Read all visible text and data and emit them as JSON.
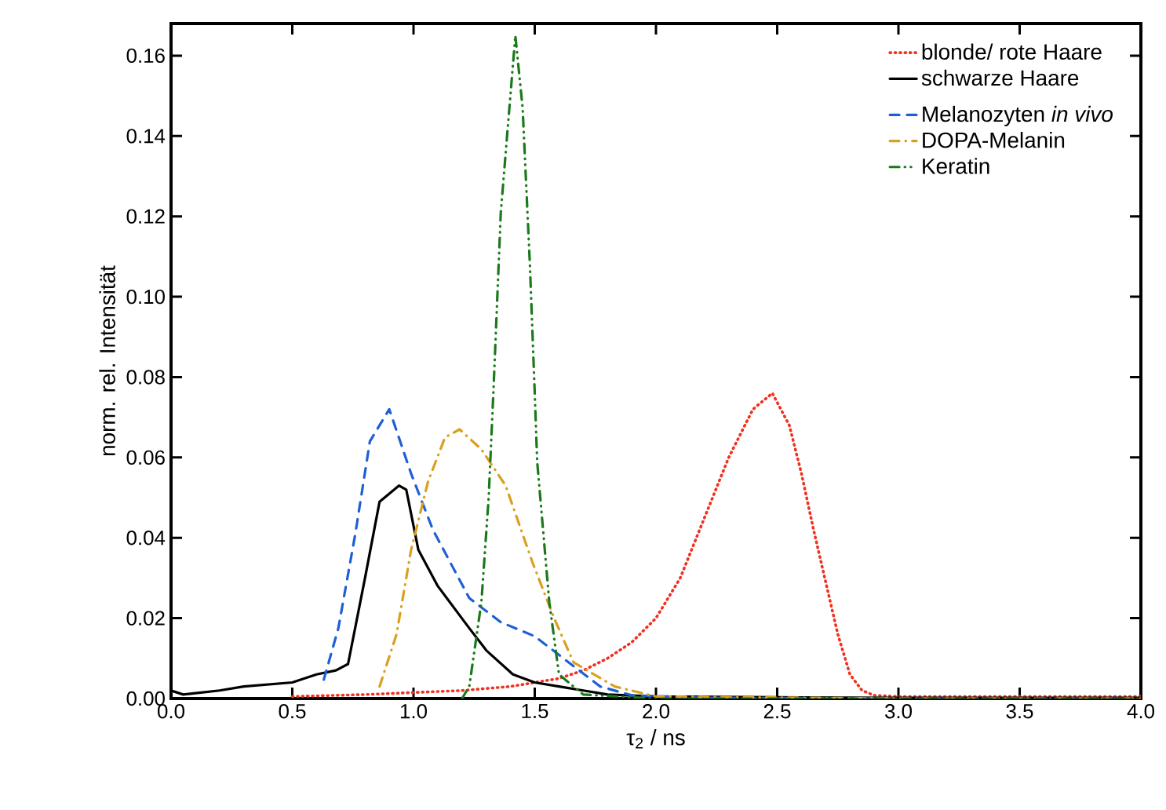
{
  "chart_data": {
    "type": "line",
    "xlabel": "τ$_{2}$ / ns",
    "ylabel": "norm. rel. Intensität",
    "xlim": [
      0,
      4
    ],
    "ylim": [
      0,
      0.168
    ],
    "xticks": [
      {
        "value": 0,
        "label": "0.0"
      },
      {
        "value": 0.5,
        "label": "0.5"
      },
      {
        "value": 1,
        "label": "1.0"
      },
      {
        "value": 1.5,
        "label": "1.5"
      },
      {
        "value": 2,
        "label": "2.0"
      },
      {
        "value": 2.5,
        "label": "2.5"
      },
      {
        "value": 3,
        "label": "3.0"
      },
      {
        "value": 3.5,
        "label": "3.5"
      },
      {
        "value": 4,
        "label": "4.0"
      }
    ],
    "yticks": [
      {
        "value": 0,
        "label": "0.00"
      },
      {
        "value": 0.02,
        "label": "0.02"
      },
      {
        "value": 0.04,
        "label": "0.04"
      },
      {
        "value": 0.06,
        "label": "0.06"
      },
      {
        "value": 0.08,
        "label": "0.08"
      },
      {
        "value": 0.1,
        "label": "0.10"
      },
      {
        "value": 0.12,
        "label": "0.12"
      },
      {
        "value": 0.14,
        "label": "0.14"
      },
      {
        "value": 0.16,
        "label": "0.16"
      }
    ],
    "grid": false,
    "legend": "top right",
    "marker": "none",
    "series": [
      {
        "name": "blonde/ rote Haare",
        "color": "#f03020",
        "line_style": "dotted",
        "x": [
          0.5,
          0.8,
          1.0,
          1.2,
          1.4,
          1.5,
          1.6,
          1.7,
          1.8,
          1.9,
          2.0,
          2.1,
          2.2,
          2.3,
          2.4,
          2.48,
          2.55,
          2.6,
          2.65,
          2.7,
          2.75,
          2.8,
          2.85,
          2.9,
          3.0,
          3.5,
          4.0
        ],
        "values": [
          0.0005,
          0.001,
          0.0015,
          0.002,
          0.003,
          0.004,
          0.005,
          0.007,
          0.01,
          0.014,
          0.02,
          0.03,
          0.045,
          0.06,
          0.072,
          0.076,
          0.068,
          0.056,
          0.042,
          0.029,
          0.016,
          0.006,
          0.002,
          0.0008,
          0.0005,
          0.0005,
          0.0005
        ]
      },
      {
        "name": "schwarze Haare",
        "color": "#000000",
        "line_style": "solid",
        "x": [
          0,
          0.05,
          0.2,
          0.3,
          0.5,
          0.6,
          0.68,
          0.73,
          0.8,
          0.86,
          0.9,
          0.94,
          0.97,
          1.02,
          1.1,
          1.23,
          1.3,
          1.41,
          1.5,
          1.6,
          1.7,
          1.8,
          2.0,
          2.5,
          3.0,
          4.0
        ],
        "values": [
          0.002,
          0.001,
          0.002,
          0.003,
          0.004,
          0.006,
          0.007,
          0.0086,
          0.03,
          0.049,
          0.051,
          0.053,
          0.052,
          0.037,
          0.028,
          0.0175,
          0.012,
          0.006,
          0.004,
          0.003,
          0.002,
          0.001,
          0.0005,
          0.0003,
          0.0002,
          0.0002
        ]
      },
      {
        "name": "Melanozyten *in vivo*",
        "color": "#1f5fd6",
        "line_style": "dashed",
        "x": [
          0.63,
          0.69,
          0.76,
          0.82,
          0.9,
          0.99,
          1.08,
          1.23,
          1.36,
          1.5,
          1.64,
          1.77,
          1.9,
          2.2,
          3.0,
          4.0
        ],
        "values": [
          0.0047,
          0.0175,
          0.041,
          0.064,
          0.072,
          0.056,
          0.042,
          0.025,
          0.019,
          0.0155,
          0.009,
          0.003,
          0.0008,
          0.0002,
          0,
          0
        ]
      },
      {
        "name": "DOPA-Melanin",
        "color": "#d9a020",
        "line_style": "dashdotted",
        "x": [
          0.86,
          0.93,
          0.99,
          1.06,
          1.13,
          1.19,
          1.28,
          1.38,
          1.49,
          1.58,
          1.66,
          1.83,
          2.0,
          3.0,
          4.0
        ],
        "values": [
          0.003,
          0.016,
          0.037,
          0.054,
          0.065,
          0.067,
          0.062,
          0.053,
          0.034,
          0.02,
          0.009,
          0.003,
          0.0005,
          0,
          0
        ]
      },
      {
        "name": "Keratin",
        "color": "#1a7a1a",
        "line_style": "dashdotdotted",
        "x": [
          1.2,
          1.23,
          1.28,
          1.31,
          1.33,
          1.36,
          1.42,
          1.45,
          1.48,
          1.5,
          1.51,
          1.56,
          1.6,
          1.7,
          2.0,
          4.0
        ],
        "values": [
          0,
          0.003,
          0.024,
          0.05,
          0.077,
          0.121,
          0.165,
          0.147,
          0.108,
          0.076,
          0.059,
          0.024,
          0.006,
          0.001,
          0,
          0
        ]
      }
    ]
  }
}
